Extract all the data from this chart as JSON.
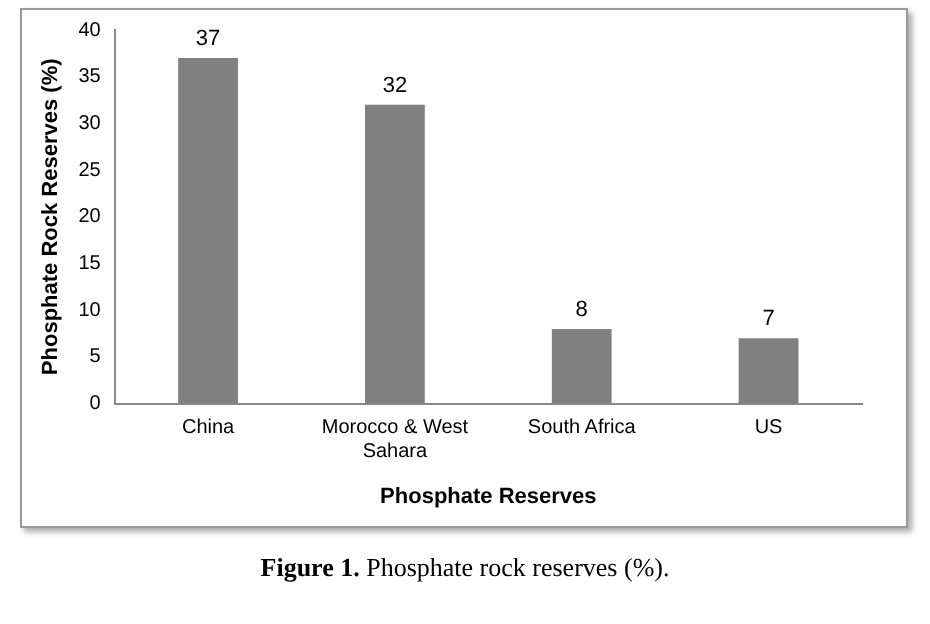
{
  "chart_data": {
    "type": "bar",
    "categories": [
      "China",
      "Morocco & West Sahara",
      "South Africa",
      "US"
    ],
    "values": [
      37,
      32,
      8,
      7
    ],
    "color": "#808080",
    "ylim": [
      0,
      40
    ],
    "yticks": [
      0,
      5,
      10,
      15,
      20,
      25,
      30,
      35,
      40
    ],
    "grid": false,
    "legend": false,
    "data_labels": true,
    "xlabel": "Phosphate Reserves",
    "ylabel": "Phosphate Rock Reserves (%)",
    "annotations": [
      "Figure 1. Phosphate rock reserves (%)."
    ]
  }
}
